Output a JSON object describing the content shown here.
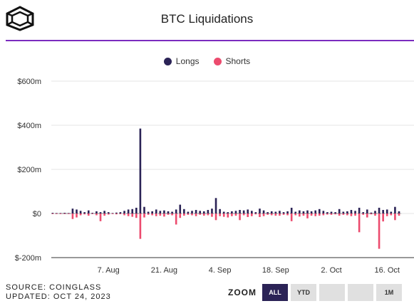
{
  "title": "BTC Liquidations",
  "legend": {
    "longs": "Longs",
    "shorts": "Shorts"
  },
  "colors": {
    "longs": "#2b2356",
    "shorts": "#ec4b6e",
    "accent": "#7b2cbf"
  },
  "footer": {
    "source": "SOURCE: COINGLASS",
    "updated": "UPDATED: OCT 24, 2023"
  },
  "zoom": {
    "label": "ZOOM",
    "buttons": [
      "ALL",
      "YTD",
      "",
      "",
      "1M"
    ],
    "active": "ALL"
  },
  "chart_data": {
    "type": "bar",
    "ylim": [
      -200,
      600
    ],
    "yunit": "$m",
    "y_ticks": [
      "$600m",
      "$400m",
      "$200m",
      "$0",
      "$-200m"
    ],
    "y_tick_values": [
      600,
      400,
      200,
      0,
      -200
    ],
    "x_ticks": [
      "7. Aug",
      "21. Aug",
      "4. Sep",
      "18. Sep",
      "2. Oct",
      "16. Oct"
    ],
    "x_tick_day_index": [
      14,
      28,
      42,
      56,
      70,
      84
    ],
    "grid": true,
    "legend_position": "top-center",
    "series": [
      {
        "name": "Longs",
        "values": [
          3,
          2,
          2,
          3,
          2,
          22,
          18,
          12,
          6,
          14,
          3,
          10,
          6,
          12,
          6,
          2,
          4,
          6,
          12,
          18,
          20,
          26,
          385,
          30,
          8,
          10,
          18,
          12,
          14,
          10,
          8,
          18,
          40,
          20,
          8,
          12,
          16,
          12,
          10,
          16,
          22,
          70,
          20,
          8,
          6,
          10,
          12,
          16,
          14,
          18,
          12,
          6,
          22,
          14,
          6,
          10,
          8,
          12,
          6,
          10,
          26,
          8,
          14,
          10,
          14,
          10,
          14,
          20,
          12,
          6,
          8,
          6,
          20,
          8,
          10,
          16,
          12,
          26,
          6,
          18,
          4,
          12,
          26,
          16,
          18,
          8,
          30,
          10
        ]
      },
      {
        "name": "Shorts",
        "values": [
          -1,
          -1,
          -1,
          -1,
          -1,
          -25,
          -18,
          -8,
          -4,
          -10,
          -2,
          -8,
          -35,
          -10,
          -5,
          -2,
          -4,
          -3,
          -8,
          -12,
          -15,
          -20,
          -115,
          -18,
          -6,
          -8,
          -12,
          -10,
          -14,
          -6,
          -8,
          -50,
          -20,
          -10,
          -6,
          -8,
          -12,
          -6,
          -10,
          -8,
          -15,
          -30,
          -12,
          -15,
          -18,
          -12,
          -10,
          -30,
          -8,
          -16,
          -12,
          -4,
          -16,
          -12,
          -6,
          -8,
          -10,
          -10,
          -6,
          -8,
          -35,
          -8,
          -14,
          -10,
          -22,
          -10,
          -12,
          -10,
          -8,
          -5,
          -6,
          -4,
          -10,
          -6,
          -8,
          -12,
          -10,
          -85,
          -6,
          -18,
          -4,
          -10,
          -160,
          -36,
          -12,
          -8,
          -30,
          -10
        ]
      }
    ]
  }
}
